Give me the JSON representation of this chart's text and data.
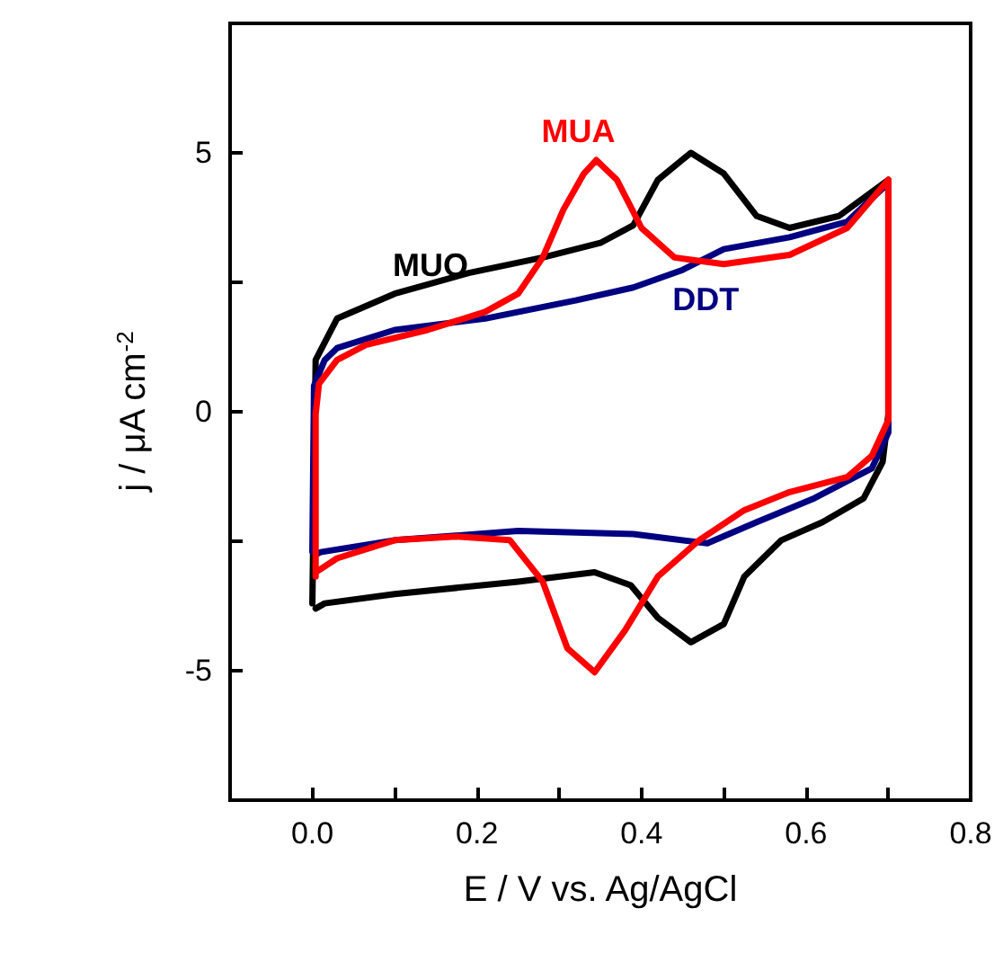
{
  "chart_data": {
    "type": "line",
    "xlabel": "E / V vs. Ag/AgCl",
    "ylabel": "j / μA cm$^{-2}$",
    "xlim": [
      -0.1,
      0.8
    ],
    "ylim": [
      -7.5,
      7.5
    ],
    "xticks": [
      {
        "value": 0,
        "label": "0.0"
      },
      {
        "value": 0.1,
        "label": null
      },
      {
        "value": 0.2,
        "label": "0.2"
      },
      {
        "value": 0.3,
        "label": null
      },
      {
        "value": 0.4,
        "label": "0.4"
      },
      {
        "value": 0.5,
        "label": null
      },
      {
        "value": 0.6,
        "label": "0.6"
      },
      {
        "value": 0.7,
        "label": null
      },
      {
        "value": 0.8,
        "label": "0.8"
      }
    ],
    "yticks": [
      -5,
      {
        "value": -2.5,
        "label": null
      },
      0,
      {
        "value": 2.5,
        "label": null
      },
      5
    ],
    "grid": false,
    "legend": false,
    "marker": "none",
    "line_style": "solid",
    "series": [
      {
        "name": "MUO",
        "color": "#000000",
        "x": [
          0,
          0.004,
          0.03,
          0.1,
          0.19,
          0.28,
          0.35,
          0.39,
          0.42,
          0.46,
          0.5,
          0.54,
          0.58,
          0.64,
          0.7,
          0.7,
          0.693,
          0.67,
          0.62,
          0.57,
          0.525,
          0.5,
          0.46,
          0.42,
          0.387,
          0.343,
          0.25,
          0.1,
          0.015,
          0.004
        ],
        "values": [
          -3.7,
          1.0,
          1.8,
          2.28,
          2.68,
          2.98,
          3.26,
          3.6,
          4.48,
          5.0,
          4.6,
          3.78,
          3.55,
          3.78,
          4.48,
          -0.05,
          -0.97,
          -1.67,
          -2.13,
          -2.48,
          -3.18,
          -4.1,
          -4.45,
          -3.98,
          -3.35,
          -3.1,
          -3.28,
          -3.52,
          -3.7,
          -3.8
        ]
      },
      {
        "name": "DDT",
        "color": "#000080",
        "x": [
          0,
          0.002,
          0.015,
          0.03,
          0.1,
          0.21,
          0.32,
          0.39,
          0.45,
          0.5,
          0.58,
          0.65,
          0.7,
          0.7,
          0.68,
          0.61,
          0.54,
          0.48,
          0.39,
          0.25,
          0.1,
          0.01,
          0.004
        ],
        "values": [
          -2.7,
          0.5,
          1.0,
          1.23,
          1.58,
          1.8,
          2.15,
          2.4,
          2.74,
          3.14,
          3.37,
          3.67,
          4.42,
          -0.4,
          -1.09,
          -1.67,
          -2.13,
          -2.54,
          -2.36,
          -2.3,
          -2.48,
          -2.71,
          -2.76
        ]
      },
      {
        "name": "MUA",
        "color": "#ff0000",
        "x": [
          0.004,
          0.004,
          0.008,
          0.03,
          0.065,
          0.14,
          0.21,
          0.25,
          0.28,
          0.305,
          0.33,
          0.345,
          0.37,
          0.4,
          0.44,
          0.5,
          0.58,
          0.65,
          0.7,
          0.7,
          0.68,
          0.65,
          0.58,
          0.525,
          0.47,
          0.42,
          0.38,
          0.343,
          0.31,
          0.28,
          0.24,
          0.175,
          0.1,
          0.03,
          0.004
        ],
        "values": [
          -3.18,
          -0.05,
          0.54,
          1.0,
          1.29,
          1.58,
          1.93,
          2.28,
          2.98,
          3.9,
          4.6,
          4.86,
          4.48,
          3.55,
          2.98,
          2.85,
          3.03,
          3.55,
          4.48,
          -0.16,
          -0.85,
          -1.26,
          -1.55,
          -1.9,
          -2.48,
          -3.18,
          -4.22,
          -5.03,
          -4.57,
          -3.28,
          -2.48,
          -2.41,
          -2.48,
          -2.83,
          -3.1
        ]
      }
    ]
  }
}
